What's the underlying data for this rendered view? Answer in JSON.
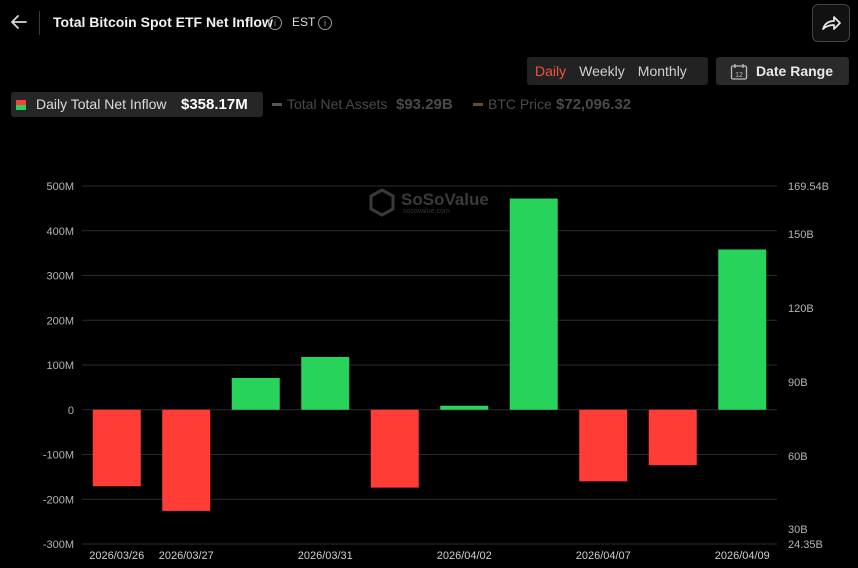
{
  "header": {
    "title": "Total Bitcoin Spot ETF Net Inflow",
    "timezone": "EST",
    "info_icon": "i"
  },
  "period_tabs": [
    {
      "label": "Daily",
      "active": true
    },
    {
      "label": "Weekly",
      "active": false
    },
    {
      "label": "Monthly",
      "active": false
    }
  ],
  "date_range": {
    "label": "Date Range",
    "icon_day": "12"
  },
  "legend": [
    {
      "label": "Daily Total Net Inflow",
      "value": "$358.17M",
      "active": true
    },
    {
      "label": "Total Net Assets",
      "value": "$93.29B",
      "active": false
    },
    {
      "label": "BTC Price",
      "value": "$72,096.32",
      "active": false
    }
  ],
  "watermark": {
    "name": "SoSoValue",
    "url": "sosovalue.com"
  },
  "colors": {
    "positive": "#27d35b",
    "negative": "#ff3d36",
    "accent": "#f0553e",
    "grid": "#2c2c2c"
  },
  "chart_data": {
    "type": "bar",
    "y_left": {
      "ticks": [
        "500M",
        "400M",
        "300M",
        "200M",
        "100M",
        "0",
        "-100M",
        "-200M",
        "-300M"
      ],
      "range": [
        -300,
        500
      ],
      "unit": "M"
    },
    "y_right": {
      "ticks": [
        "169.54B",
        "150B",
        "120B",
        "90B",
        "60B",
        "30B",
        "24.35B"
      ]
    },
    "x_labels": [
      "2026/03/26",
      "2026/03/27",
      "2026/03/31",
      "2026/04/02",
      "2026/04/07",
      "2026/04/09"
    ],
    "x_label_bar_index": [
      0,
      1,
      3,
      5,
      7,
      9
    ],
    "series": [
      {
        "values": [
          -171,
          -226,
          71,
          118,
          -174,
          9,
          472,
          -160,
          -124,
          358.17
        ]
      }
    ]
  }
}
